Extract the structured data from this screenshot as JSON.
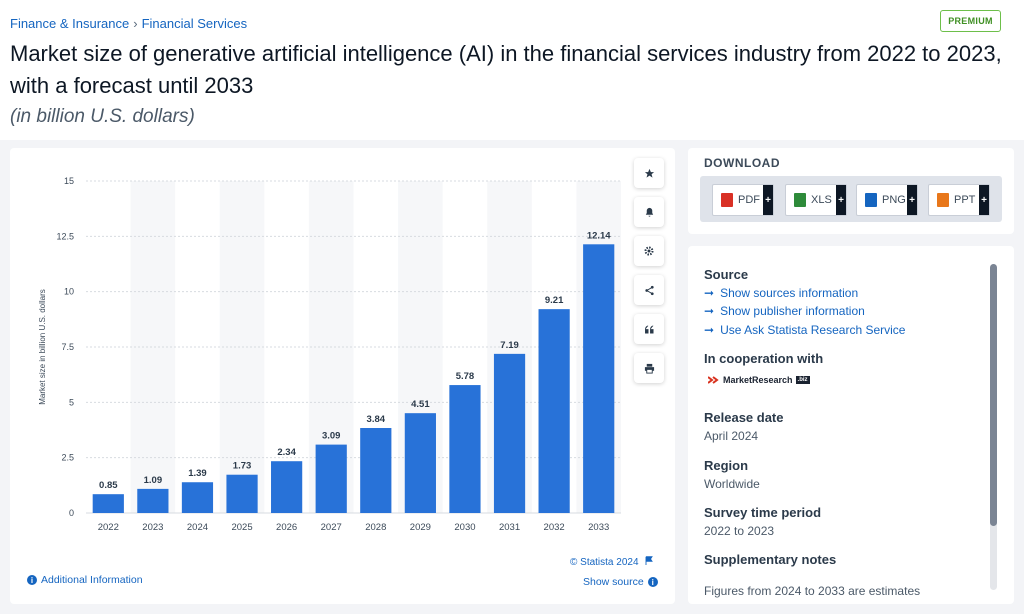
{
  "breadcrumb": {
    "items": [
      "Finance & Insurance",
      "Financial Services"
    ],
    "separator": "›"
  },
  "premium_label": "PREMIUM",
  "page_title": "Market size of generative artificial intelligence (AI) in the financial services industry from 2022 to 2023, with a forecast until 2033",
  "page_subtitle": "(in billion U.S. dollars)",
  "toolbar": {
    "icons": [
      "star-icon",
      "bell-icon",
      "gear-icon",
      "share-icon",
      "quote-icon",
      "print-icon"
    ]
  },
  "chart_data": {
    "type": "bar",
    "categories": [
      "2022",
      "2023",
      "2024",
      "2025",
      "2026",
      "2027",
      "2028",
      "2029",
      "2030",
      "2031",
      "2032",
      "2033"
    ],
    "values": [
      0.85,
      1.09,
      1.39,
      1.73,
      2.34,
      3.09,
      3.84,
      4.51,
      5.78,
      7.19,
      9.21,
      12.14
    ],
    "value_labels": [
      "0.85",
      "1.09",
      "1.39",
      "1.73",
      "2.34",
      "3.09",
      "3.84",
      "4.51",
      "5.78",
      "7.19",
      "9.21",
      "12.14"
    ],
    "ylabel": "Market size in billion U.S. dollars",
    "yticks": [
      "0",
      "2.5",
      "5",
      "7.5",
      "10",
      "12.5",
      "15"
    ],
    "ylim": [
      0,
      15
    ],
    "grid": true,
    "bar_color": "#2872d8"
  },
  "chart_footer": {
    "credit": "© Statista 2024",
    "additional_info": "Additional Information",
    "show_source": "Show source"
  },
  "download": {
    "title": "DOWNLOAD",
    "buttons": [
      {
        "label": "PDF",
        "color": "#d93025"
      },
      {
        "label": "XLS",
        "color": "#2e8b3a"
      },
      {
        "label": "PNG",
        "color": "#1565c0"
      },
      {
        "label": "PPT",
        "color": "#e8771b"
      }
    ]
  },
  "details": {
    "source_heading": "Source",
    "source_links": [
      "Show sources information",
      "Show publisher information",
      "Use Ask Statista Research Service"
    ],
    "cooperation_heading": "In cooperation with",
    "cooperation_logo_text": "MarketResearch",
    "cooperation_logo_tag": ".biz",
    "release_heading": "Release date",
    "release_value": "April 2024",
    "region_heading": "Region",
    "region_value": "Worldwide",
    "survey_heading": "Survey time period",
    "survey_value": "2022 to 2023",
    "supplementary_heading": "Supplementary notes",
    "supplementary_cut": "Figures from 2024 to 2033 are estimates"
  }
}
